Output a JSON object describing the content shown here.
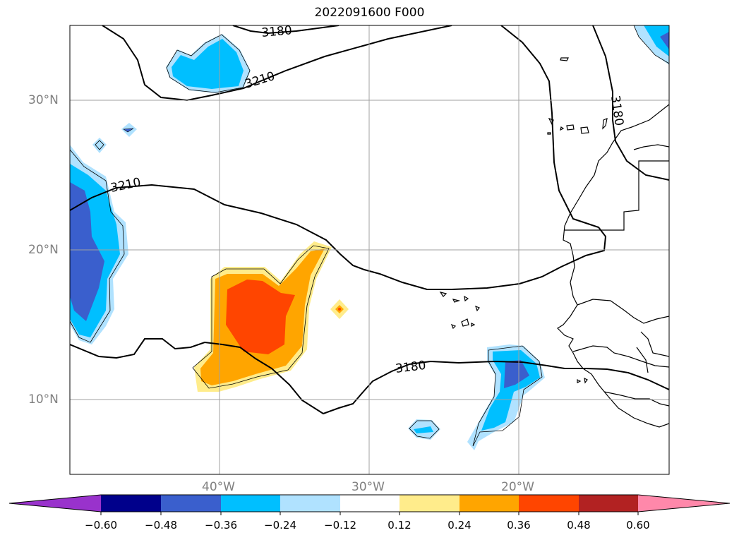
{
  "title": "2022091600 F000",
  "map": {
    "lat_ticks": [
      "30°N",
      "20°N",
      "10°N"
    ],
    "lon_ticks": [
      "40°W",
      "30°W",
      "20°W"
    ],
    "contour_labels": [
      "3180",
      "3210",
      "3210",
      "3180",
      "3180"
    ]
  },
  "colorbar": {
    "labels": [
      "−0.60",
      "−0.48",
      "−0.36",
      "−0.24",
      "−0.12",
      "0.12",
      "0.24",
      "0.36",
      "0.48",
      "0.60"
    ],
    "colors": [
      "#9932cc",
      "#00008b",
      "#3a5fcd",
      "#00bfff",
      "#b0e2ff",
      "#ffffff",
      "#ffec8b",
      "#ffa500",
      "#ff4500",
      "#b22222",
      "#ff88aa"
    ],
    "extend": "both"
  }
}
